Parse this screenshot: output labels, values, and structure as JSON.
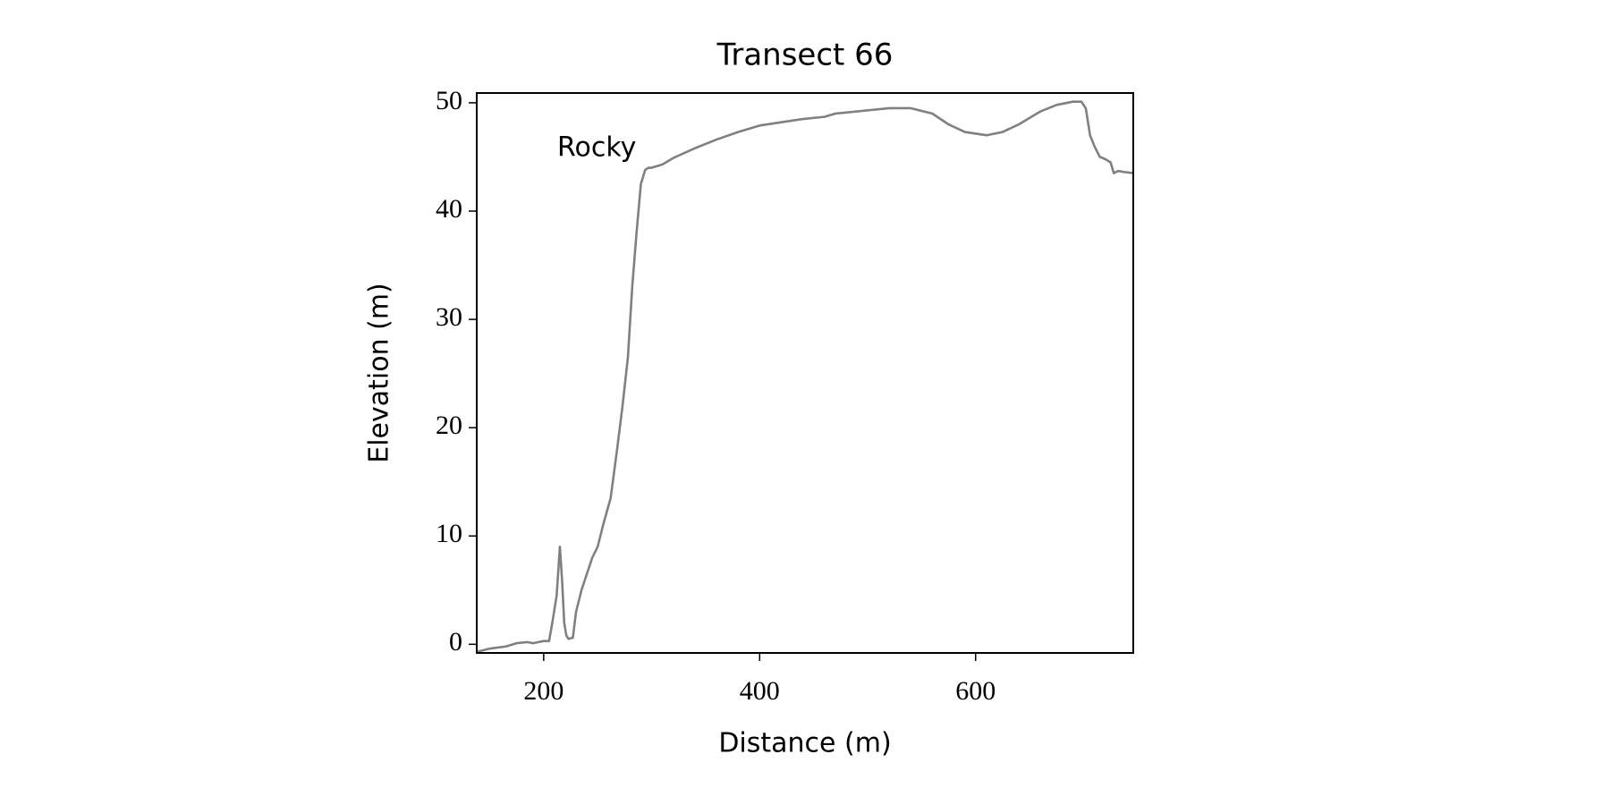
{
  "chart_data": {
    "type": "line",
    "title": "Transect 66",
    "xlabel": "Distance (m)",
    "ylabel": "Elevation (m)",
    "annotation": "Rocky",
    "x": [
      138,
      150,
      165,
      175,
      185,
      190,
      200,
      205,
      208,
      212,
      215,
      217,
      219,
      221,
      223,
      227,
      230,
      235,
      240,
      245,
      250,
      255,
      262,
      268,
      273,
      278,
      282,
      286,
      290,
      294,
      297,
      300,
      310,
      320,
      340,
      360,
      380,
      400,
      420,
      440,
      460,
      470,
      480,
      500,
      520,
      540,
      560,
      575,
      590,
      610,
      625,
      640,
      660,
      675,
      690,
      698,
      702,
      706,
      710,
      715,
      720,
      725,
      728,
      732,
      738,
      746
    ],
    "series": [
      {
        "name": "Elevation",
        "color": "#808080",
        "values": [
          -0.7,
          -0.4,
          -0.2,
          0.1,
          0.2,
          0.1,
          0.3,
          0.3,
          2,
          4.5,
          9,
          6,
          2,
          0.8,
          0.5,
          0.6,
          3,
          5,
          6.5,
          8,
          9,
          11,
          13.5,
          18,
          22,
          26.5,
          33,
          38,
          42.5,
          43.8,
          44,
          44,
          44.3,
          44.9,
          45.8,
          46.6,
          47.3,
          47.9,
          48.2,
          48.5,
          48.7,
          49,
          49.1,
          49.3,
          49.5,
          49.5,
          49,
          48,
          47.3,
          47,
          47.3,
          48,
          49.2,
          49.8,
          50.1,
          50.1,
          49.5,
          47,
          46,
          45,
          44.8,
          44.5,
          43.5,
          43.7,
          43.6,
          43.5
        ]
      }
    ],
    "xlim": [
      138,
      746
    ],
    "ylim": [
      -0.8,
      50.9
    ],
    "xticks": [
      200,
      400,
      600
    ],
    "yticks": [
      0,
      10,
      20,
      30,
      40,
      50
    ]
  }
}
